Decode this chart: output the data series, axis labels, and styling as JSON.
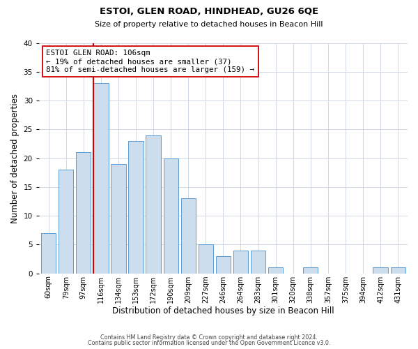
{
  "title": "ESTOI, GLEN ROAD, HINDHEAD, GU26 6QE",
  "subtitle": "Size of property relative to detached houses in Beacon Hill",
  "xlabel": "Distribution of detached houses by size in Beacon Hill",
  "ylabel": "Number of detached properties",
  "bar_labels": [
    "60sqm",
    "79sqm",
    "97sqm",
    "116sqm",
    "134sqm",
    "153sqm",
    "172sqm",
    "190sqm",
    "209sqm",
    "227sqm",
    "246sqm",
    "264sqm",
    "283sqm",
    "301sqm",
    "320sqm",
    "338sqm",
    "357sqm",
    "375sqm",
    "394sqm",
    "412sqm",
    "431sqm"
  ],
  "bar_values": [
    7,
    18,
    21,
    33,
    19,
    23,
    24,
    20,
    13,
    5,
    3,
    4,
    4,
    1,
    0,
    1,
    0,
    0,
    0,
    1,
    1
  ],
  "bar_color": "#ccdded",
  "bar_edge_color": "#5b9bd5",
  "marker_label": "ESTOI GLEN ROAD: 106sqm",
  "pct_smaller": "19% of detached houses are smaller (37)",
  "pct_larger": "81% of semi-detached houses are larger (159)",
  "marker_line_color": "#cc0000",
  "ylim": [
    0,
    40
  ],
  "yticks": [
    0,
    5,
    10,
    15,
    20,
    25,
    30,
    35,
    40
  ],
  "footer1": "Contains HM Land Registry data © Crown copyright and database right 2024.",
  "footer2": "Contains public sector information licensed under the Open Government Licence v3.0.",
  "background_color": "#ffffff",
  "grid_color": "#d0d8e4"
}
